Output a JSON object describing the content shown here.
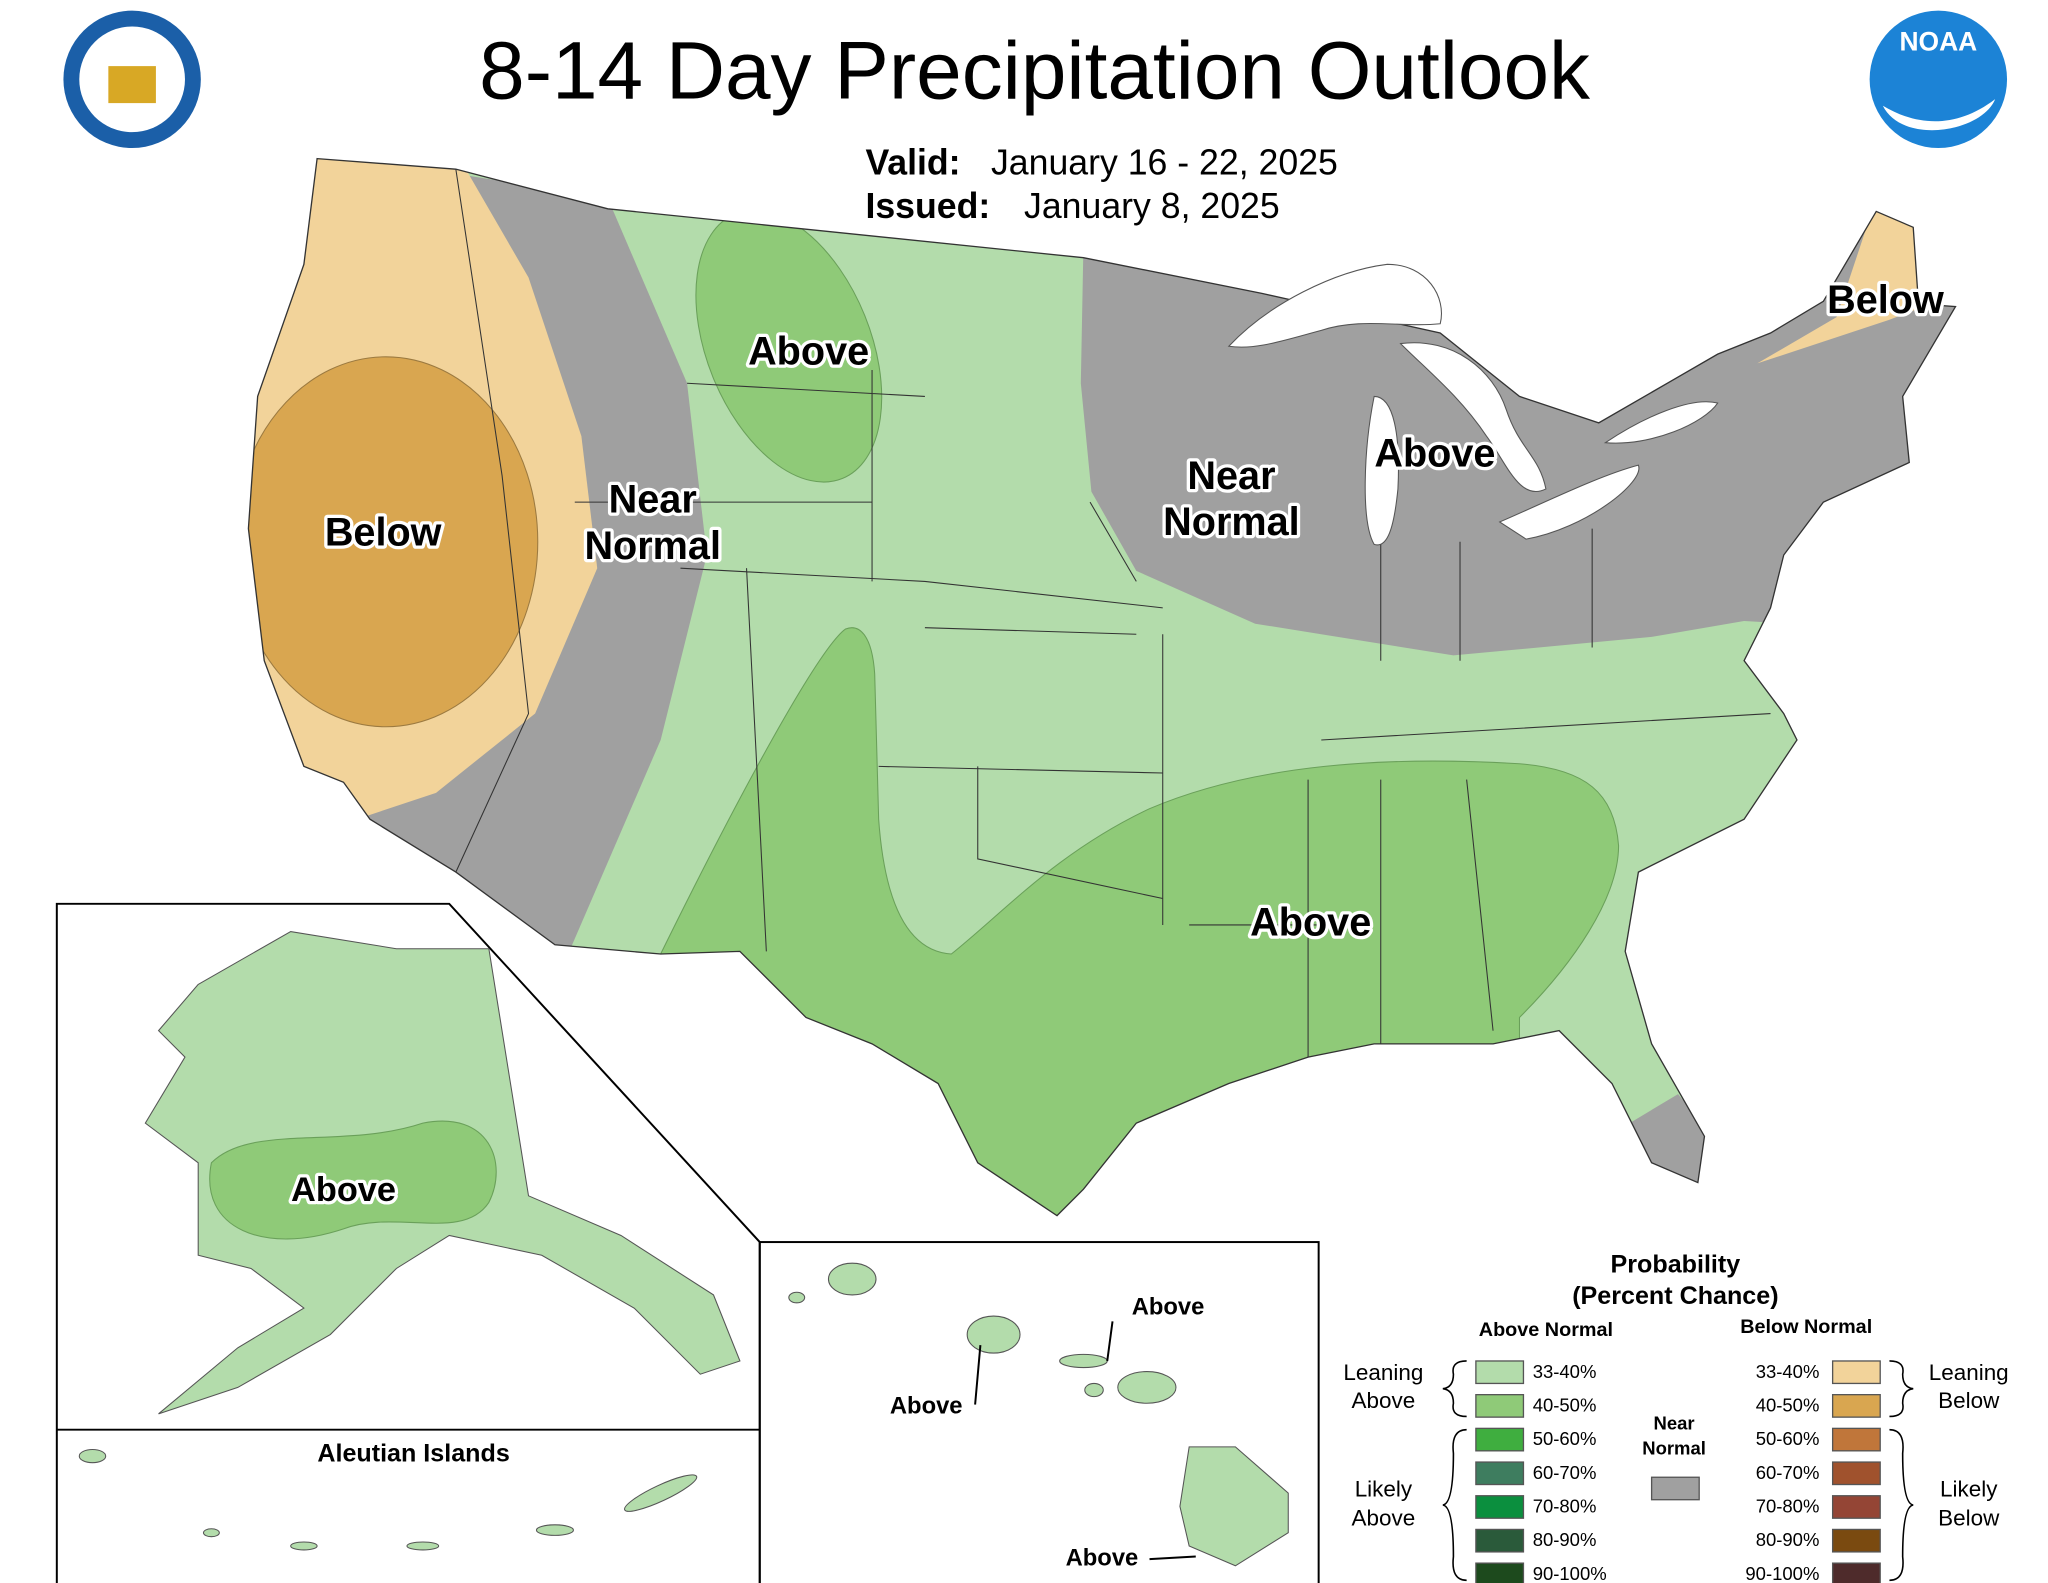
{
  "header": {
    "title": "8-14 Day Precipitation Outlook",
    "valid_label": "Valid:",
    "valid_dates": "January 16 - 22, 2025",
    "issued_label": "Issued:",
    "issued_date": "January 8, 2025"
  },
  "logo": {
    "noaa": "NOAA"
  },
  "map_labels": [
    {
      "lines": [
        "Above"
      ]
    },
    {
      "lines": [
        "Near",
        "Normal"
      ]
    },
    {
      "lines": [
        "Below"
      ]
    },
    {
      "lines": [
        "Near",
        "Normal"
      ]
    },
    {
      "lines": [
        "Above"
      ]
    },
    {
      "lines": [
        "Below"
      ]
    },
    {
      "lines": [
        "Above"
      ]
    },
    {
      "lines": [
        "Above"
      ]
    },
    {
      "lines": [
        "Above"
      ]
    },
    {
      "lines": [
        "Above"
      ]
    },
    {
      "lines": [
        "Above"
      ]
    }
  ],
  "inset_title": "Aleutian Islands",
  "legend": {
    "title": [
      "Probability",
      "(Percent Chance)"
    ],
    "above_heading": "Above Normal",
    "below_heading": "Below Normal",
    "leaning_above": [
      "Leaning",
      "Above"
    ],
    "likely_above": [
      "Likely",
      "Above"
    ],
    "leaning_below": [
      "Leaning",
      "Below"
    ],
    "likely_below": [
      "Likely",
      "Below"
    ],
    "near_normal": [
      "Near",
      "Normal"
    ],
    "above_bins": [
      "33-40%",
      "40-50%",
      "50-60%",
      "60-70%",
      "70-80%",
      "80-90%",
      "90-100%"
    ],
    "below_bins": [
      "33-40%",
      "40-50%",
      "50-60%",
      "60-70%",
      "70-80%",
      "80-90%",
      "90-100%"
    ]
  }
}
